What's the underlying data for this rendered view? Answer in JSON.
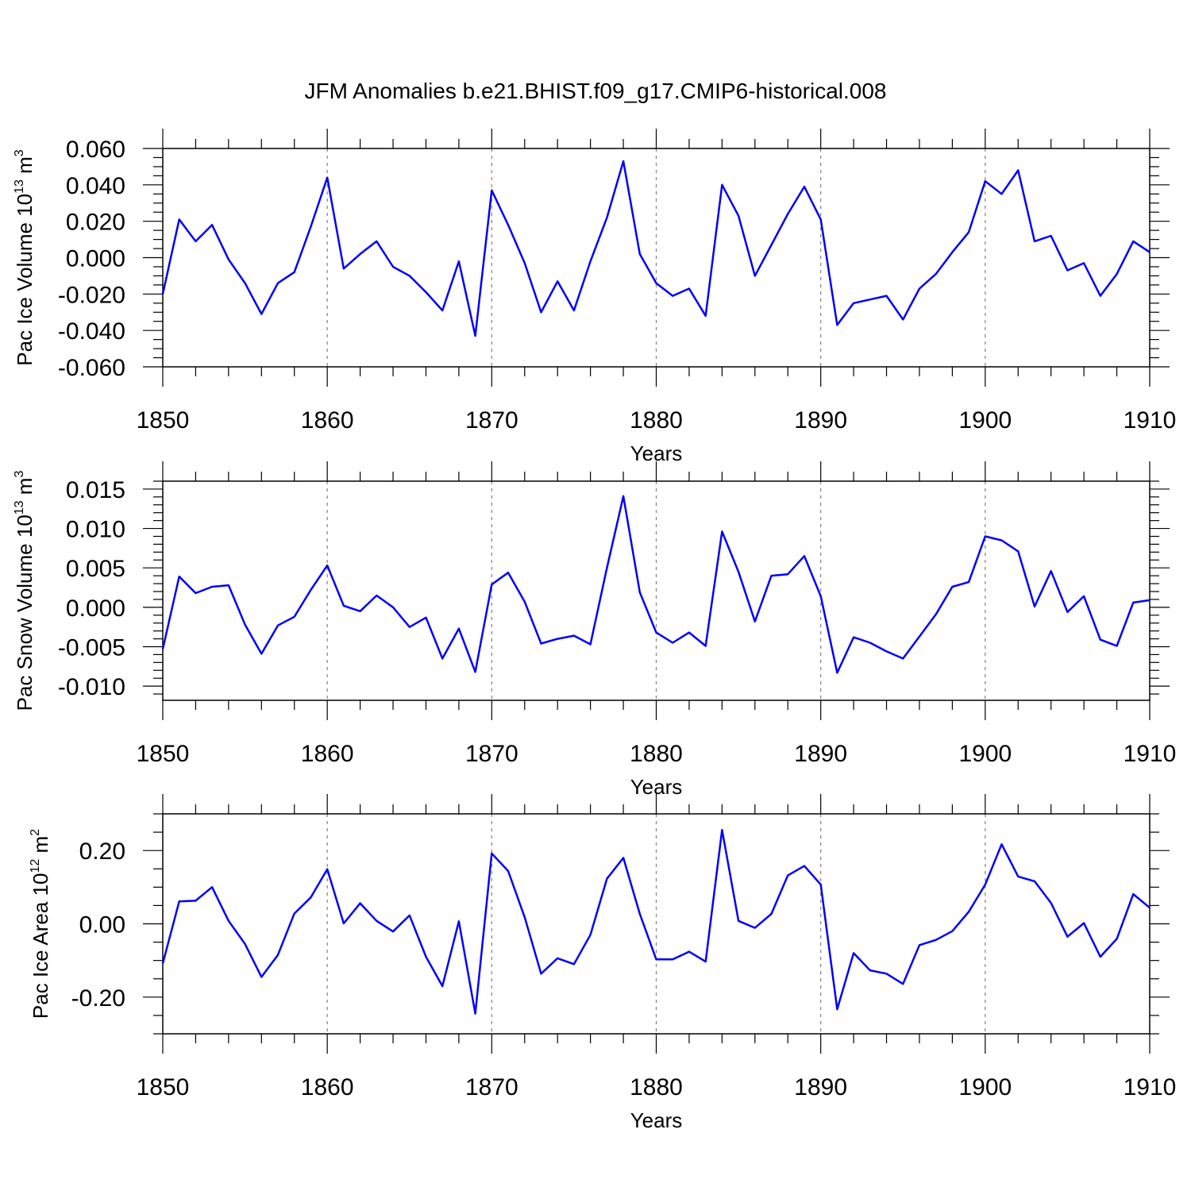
{
  "title": "JFM Anomalies b.e21.BHIST.f09_g17.CMIP6-historical.008",
  "colors": {
    "line": "#0000ff",
    "axis": "#000000",
    "grid": "#808080"
  },
  "chart_data": [
    {
      "type": "line",
      "name": "pac-ice-volume",
      "ylabel_main": "Pac Ice Volume 10",
      "ylabel_exp": "13",
      "ylabel_unit": " m",
      "ylabel_unit_exp": "3",
      "xlabel": "Years",
      "xlim": [
        1850,
        1910
      ],
      "ylim": [
        -0.06,
        0.06
      ],
      "xticks": [
        1850,
        1860,
        1870,
        1880,
        1890,
        1900,
        1910
      ],
      "xtick_labels": [
        "1850",
        "1860",
        "1870",
        "1880",
        "1890",
        "1900",
        "1910"
      ],
      "yticks": [
        -0.06,
        -0.04,
        -0.02,
        0.0,
        0.02,
        0.04,
        0.06
      ],
      "ytick_labels": [
        "-0.060",
        "-0.040",
        "-0.020",
        "0.000",
        "0.020",
        "0.040",
        "0.060"
      ],
      "yminor_step": 0.005,
      "x": [
        1850,
        1851,
        1852,
        1853,
        1854,
        1855,
        1856,
        1857,
        1858,
        1859,
        1860,
        1861,
        1862,
        1863,
        1864,
        1865,
        1866,
        1867,
        1868,
        1869,
        1870,
        1871,
        1872,
        1873,
        1874,
        1875,
        1876,
        1877,
        1878,
        1879,
        1880,
        1881,
        1882,
        1883,
        1884,
        1885,
        1886,
        1887,
        1888,
        1889,
        1890,
        1891,
        1892,
        1893,
        1894,
        1895,
        1896,
        1897,
        1898,
        1899,
        1900,
        1901,
        1902,
        1903,
        1904,
        1905,
        1906,
        1907,
        1908,
        1909,
        1910
      ],
      "values": [
        -0.02,
        0.021,
        0.009,
        0.018,
        -0.001,
        -0.014,
        -0.031,
        -0.014,
        -0.008,
        0.017,
        0.044,
        -0.006,
        0.002,
        0.009,
        -0.005,
        -0.01,
        -0.019,
        -0.029,
        -0.002,
        -0.043,
        0.037,
        0.018,
        -0.003,
        -0.03,
        -0.013,
        -0.029,
        -0.002,
        0.022,
        0.053,
        0.002,
        -0.014,
        -0.021,
        -0.017,
        -0.032,
        0.04,
        0.023,
        -0.01,
        0.007,
        0.024,
        0.039,
        0.021,
        -0.037,
        -0.025,
        -0.023,
        -0.021,
        -0.034,
        -0.017,
        -0.009,
        0.003,
        0.014,
        0.042,
        0.035,
        0.048,
        0.009,
        0.012,
        -0.007,
        -0.003,
        -0.021,
        -0.009,
        0.009,
        0.003
      ]
    },
    {
      "type": "line",
      "name": "pac-snow-volume",
      "ylabel_main": "Pac Snow Volume 10",
      "ylabel_exp": "13",
      "ylabel_unit": " m",
      "ylabel_unit_exp": "3",
      "xlabel": "Years",
      "xlim": [
        1850,
        1910
      ],
      "ylim": [
        -0.0118,
        0.016
      ],
      "xticks": [
        1850,
        1860,
        1870,
        1880,
        1890,
        1900,
        1910
      ],
      "xtick_labels": [
        "1850",
        "1860",
        "1870",
        "1880",
        "1890",
        "1900",
        "1910"
      ],
      "yticks": [
        -0.01,
        -0.005,
        0.0,
        0.005,
        0.01,
        0.015
      ],
      "ytick_labels": [
        "-0.010",
        "-0.005",
        "0.000",
        "0.005",
        "0.010",
        "0.015"
      ],
      "yminor_step": 0.001,
      "x": [
        1850,
        1851,
        1852,
        1853,
        1854,
        1855,
        1856,
        1857,
        1858,
        1859,
        1860,
        1861,
        1862,
        1863,
        1864,
        1865,
        1866,
        1867,
        1868,
        1869,
        1870,
        1871,
        1872,
        1873,
        1874,
        1875,
        1876,
        1877,
        1878,
        1879,
        1880,
        1881,
        1882,
        1883,
        1884,
        1885,
        1886,
        1887,
        1888,
        1889,
        1890,
        1891,
        1892,
        1893,
        1894,
        1895,
        1896,
        1897,
        1898,
        1899,
        1900,
        1901,
        1902,
        1903,
        1904,
        1905,
        1906,
        1907,
        1908,
        1909,
        1910
      ],
      "values": [
        -0.0053,
        0.0039,
        0.0018,
        0.0026,
        0.0028,
        -0.0022,
        -0.0059,
        -0.0023,
        -0.0012,
        0.0022,
        0.0053,
        0.0002,
        -0.0005,
        0.0015,
        0.0,
        -0.0025,
        -0.0013,
        -0.0065,
        -0.0027,
        -0.0082,
        0.0029,
        0.0044,
        0.0007,
        -0.0046,
        -0.004,
        -0.0036,
        -0.0047,
        0.005,
        0.0141,
        0.0019,
        -0.0032,
        -0.0045,
        -0.0032,
        -0.0049,
        0.0096,
        0.0045,
        -0.0018,
        0.004,
        0.0042,
        0.0065,
        0.0014,
        -0.0083,
        -0.0038,
        -0.0045,
        -0.0056,
        -0.0065,
        -0.0037,
        -0.0009,
        0.0026,
        0.0032,
        0.009,
        0.0085,
        0.0071,
        0.0001,
        0.0046,
        -0.0006,
        0.0014,
        -0.0041,
        -0.0049,
        0.0006,
        0.0009
      ]
    },
    {
      "type": "line",
      "name": "pac-ice-area",
      "ylabel_main": "Pac Ice Area 10",
      "ylabel_exp": "12",
      "ylabel_unit": " m",
      "ylabel_unit_exp": "2",
      "xlabel": "Years",
      "xlim": [
        1850,
        1910
      ],
      "ylim": [
        -0.3,
        0.3
      ],
      "xticks": [
        1850,
        1860,
        1870,
        1880,
        1890,
        1900,
        1910
      ],
      "xtick_labels": [
        "1850",
        "1860",
        "1870",
        "1880",
        "1890",
        "1900",
        "1910"
      ],
      "yticks": [
        -0.2,
        0.0,
        0.2
      ],
      "ytick_labels": [
        "-0.20",
        "0.00",
        "0.20"
      ],
      "yminor_step": 0.05,
      "x": [
        1850,
        1851,
        1852,
        1853,
        1854,
        1855,
        1856,
        1857,
        1858,
        1859,
        1860,
        1861,
        1862,
        1863,
        1864,
        1865,
        1866,
        1867,
        1868,
        1869,
        1870,
        1871,
        1872,
        1873,
        1874,
        1875,
        1876,
        1877,
        1878,
        1879,
        1880,
        1881,
        1882,
        1883,
        1884,
        1885,
        1886,
        1887,
        1888,
        1889,
        1890,
        1891,
        1892,
        1893,
        1894,
        1895,
        1896,
        1897,
        1898,
        1899,
        1900,
        1901,
        1902,
        1903,
        1904,
        1905,
        1906,
        1907,
        1908,
        1909,
        1910
      ],
      "values": [
        -0.108,
        0.061,
        0.063,
        0.1,
        0.008,
        -0.055,
        -0.145,
        -0.085,
        0.028,
        0.072,
        0.149,
        0.001,
        0.056,
        0.008,
        -0.021,
        0.023,
        -0.09,
        -0.17,
        0.007,
        -0.245,
        0.192,
        0.144,
        0.018,
        -0.136,
        -0.094,
        -0.11,
        -0.03,
        0.123,
        0.18,
        0.027,
        -0.097,
        -0.097,
        -0.076,
        -0.103,
        0.256,
        0.008,
        -0.011,
        0.027,
        0.132,
        0.158,
        0.107,
        -0.233,
        -0.08,
        -0.127,
        -0.136,
        -0.164,
        -0.058,
        -0.044,
        -0.02,
        0.033,
        0.107,
        0.217,
        0.129,
        0.116,
        0.057,
        -0.035,
        0.002,
        -0.09,
        -0.041,
        0.081,
        0.044
      ]
    }
  ]
}
